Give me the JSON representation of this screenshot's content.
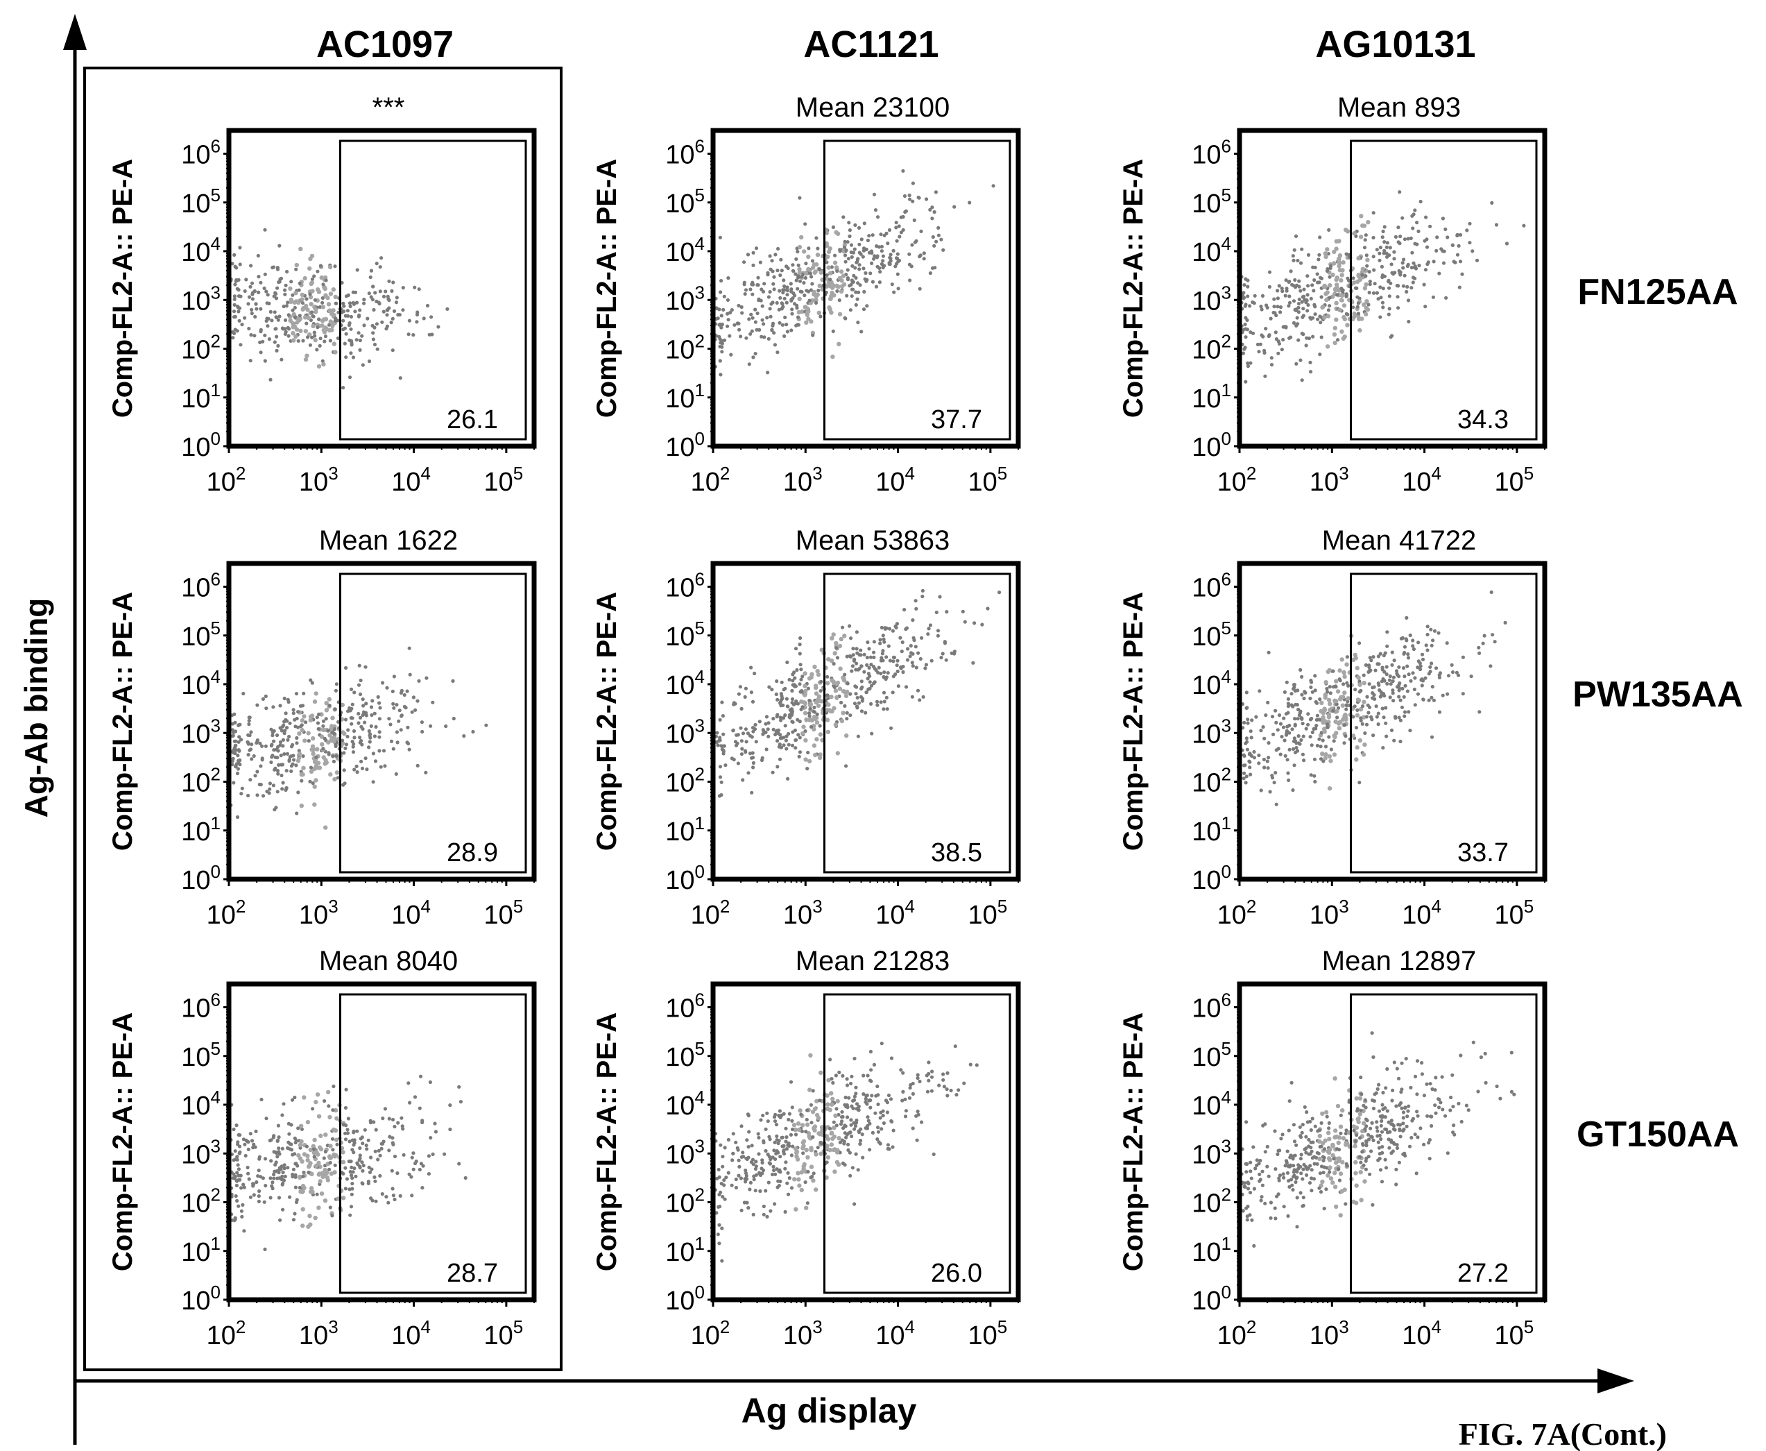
{
  "figure": {
    "fig_label": "FIG. 7A(Cont.)",
    "y_axis_label": "Ag-Ab binding",
    "x_axis_label": "Ag display",
    "column_headers": [
      "AC1097",
      "AC1121",
      "AG10131"
    ],
    "row_labels": [
      "FN125AA",
      "PW135AA",
      "GT150AA"
    ],
    "panel_ylabel": "Comp-FL2-A:: PE-A",
    "colors": {
      "ink": "#000000",
      "dots": "#7a7a7a",
      "dots_dense": "#a6a6a6"
    }
  },
  "chart_data": [
    {
      "type": "scatter",
      "row": "FN125AA",
      "column": "AC1097",
      "header": "***",
      "gate_percent": "26.1",
      "x_scale": "log",
      "y_scale": "log",
      "xlim": [
        100,
        200000
      ],
      "ylim": [
        1,
        3000000
      ],
      "x_ticks": [
        "10^2",
        "10^3",
        "10^4",
        "10^5"
      ],
      "y_ticks": [
        "10^0",
        "10^1",
        "10^2",
        "10^3",
        "10^4",
        "10^5",
        "10^6"
      ],
      "gate_x_min": 1600,
      "population": {
        "x_median": 800,
        "y_median": 600,
        "x_spread_decades": 0.55,
        "y_spread_decades": 0.5,
        "slope": -0.1,
        "x_max": 30000,
        "points": 420
      }
    },
    {
      "type": "scatter",
      "row": "FN125AA",
      "column": "AC1121",
      "header": "Mean 23100",
      "gate_percent": "37.7",
      "x_scale": "log",
      "y_scale": "log",
      "xlim": [
        100,
        200000
      ],
      "ylim": [
        1,
        3000000
      ],
      "x_ticks": [
        "10^2",
        "10^3",
        "10^4",
        "10^5"
      ],
      "y_ticks": [
        "10^0",
        "10^1",
        "10^2",
        "10^3",
        "10^4",
        "10^5",
        "10^6"
      ],
      "gate_x_min": 1600,
      "population": {
        "x_median": 1500,
        "y_median": 2500,
        "x_spread_decades": 0.65,
        "y_spread_decades": 0.55,
        "slope": 0.85,
        "x_max": 150000,
        "points": 520
      }
    },
    {
      "type": "scatter",
      "row": "FN125AA",
      "column": "AG10131",
      "header": "Mean 893",
      "gate_percent": "34.3",
      "x_scale": "log",
      "y_scale": "log",
      "xlim": [
        100,
        200000
      ],
      "ylim": [
        1,
        3000000
      ],
      "x_ticks": [
        "10^2",
        "10^3",
        "10^4",
        "10^5"
      ],
      "y_ticks": [
        "10^0",
        "10^1",
        "10^2",
        "10^3",
        "10^4",
        "10^5",
        "10^6"
      ],
      "gate_x_min": 1600,
      "population": {
        "x_median": 1400,
        "y_median": 2000,
        "x_spread_decades": 0.65,
        "y_spread_decades": 0.55,
        "slope": 0.75,
        "x_max": 120000,
        "points": 500
      }
    },
    {
      "type": "scatter",
      "row": "PW135AA",
      "column": "AC1097",
      "header": "Mean 1622",
      "gate_percent": "28.9",
      "x_scale": "log",
      "y_scale": "log",
      "xlim": [
        100,
        200000
      ],
      "ylim": [
        1,
        3000000
      ],
      "x_ticks": [
        "10^2",
        "10^3",
        "10^4",
        "10^5"
      ],
      "y_ticks": [
        "10^0",
        "10^1",
        "10^2",
        "10^3",
        "10^4",
        "10^5",
        "10^6"
      ],
      "gate_x_min": 1600,
      "population": {
        "x_median": 1000,
        "y_median": 800,
        "x_spread_decades": 0.6,
        "y_spread_decades": 0.55,
        "slope": 0.35,
        "x_max": 70000,
        "points": 450
      }
    },
    {
      "type": "scatter",
      "row": "PW135AA",
      "column": "AC1121",
      "header": "Mean 53863",
      "gate_percent": "38.5",
      "x_scale": "log",
      "y_scale": "log",
      "xlim": [
        100,
        200000
      ],
      "ylim": [
        1,
        3000000
      ],
      "x_ticks": [
        "10^2",
        "10^3",
        "10^4",
        "10^5"
      ],
      "y_ticks": [
        "10^0",
        "10^1",
        "10^2",
        "10^3",
        "10^4",
        "10^5",
        "10^6"
      ],
      "gate_x_min": 1600,
      "population": {
        "x_median": 1600,
        "y_median": 5000,
        "x_spread_decades": 0.65,
        "y_spread_decades": 0.5,
        "slope": 0.9,
        "x_max": 150000,
        "points": 540
      }
    },
    {
      "type": "scatter",
      "row": "PW135AA",
      "column": "AG10131",
      "header": "Mean 41722",
      "gate_percent": "33.7",
      "x_scale": "log",
      "y_scale": "log",
      "xlim": [
        100,
        200000
      ],
      "ylim": [
        1,
        3000000
      ],
      "x_ticks": [
        "10^2",
        "10^3",
        "10^4",
        "10^5"
      ],
      "y_ticks": [
        "10^0",
        "10^1",
        "10^2",
        "10^3",
        "10^4",
        "10^5",
        "10^6"
      ],
      "gate_x_min": 1600,
      "population": {
        "x_median": 1300,
        "y_median": 3000,
        "x_spread_decades": 0.65,
        "y_spread_decades": 0.55,
        "slope": 0.85,
        "x_max": 120000,
        "points": 520
      }
    },
    {
      "type": "scatter",
      "row": "GT150AA",
      "column": "AC1097",
      "header": "Mean 8040",
      "gate_percent": "28.7",
      "x_scale": "log",
      "y_scale": "log",
      "xlim": [
        100,
        200000
      ],
      "ylim": [
        1,
        3000000
      ],
      "x_ticks": [
        "10^2",
        "10^3",
        "10^4",
        "10^5"
      ],
      "y_ticks": [
        "10^0",
        "10^1",
        "10^2",
        "10^3",
        "10^4",
        "10^5",
        "10^6"
      ],
      "gate_x_min": 1600,
      "population": {
        "x_median": 1000,
        "y_median": 700,
        "x_spread_decades": 0.6,
        "y_spread_decades": 0.55,
        "slope": 0.3,
        "x_max": 40000,
        "points": 450
      }
    },
    {
      "type": "scatter",
      "row": "GT150AA",
      "column": "AC1121",
      "header": "Mean 21283",
      "gate_percent": "26.0",
      "x_scale": "log",
      "y_scale": "log",
      "xlim": [
        100,
        200000
      ],
      "ylim": [
        1,
        3000000
      ],
      "x_ticks": [
        "10^2",
        "10^3",
        "10^4",
        "10^5"
      ],
      "y_ticks": [
        "10^0",
        "10^1",
        "10^2",
        "10^3",
        "10^4",
        "10^5",
        "10^6"
      ],
      "gate_x_min": 1600,
      "population": {
        "x_median": 1300,
        "y_median": 2000,
        "x_spread_decades": 0.65,
        "y_spread_decades": 0.55,
        "slope": 0.8,
        "x_max": 120000,
        "points": 500
      }
    },
    {
      "type": "scatter",
      "row": "GT150AA",
      "column": "AG10131",
      "header": "Mean 12897",
      "gate_percent": "27.2",
      "x_scale": "log",
      "y_scale": "log",
      "xlim": [
        100,
        200000
      ],
      "ylim": [
        1,
        3000000
      ],
      "x_ticks": [
        "10^2",
        "10^3",
        "10^4",
        "10^5"
      ],
      "y_ticks": [
        "10^0",
        "10^1",
        "10^2",
        "10^3",
        "10^4",
        "10^5",
        "10^6"
      ],
      "gate_x_min": 1600,
      "population": {
        "x_median": 1300,
        "y_median": 1500,
        "x_spread_decades": 0.65,
        "y_spread_decades": 0.55,
        "slope": 0.7,
        "x_max": 150000,
        "points": 500
      }
    }
  ]
}
